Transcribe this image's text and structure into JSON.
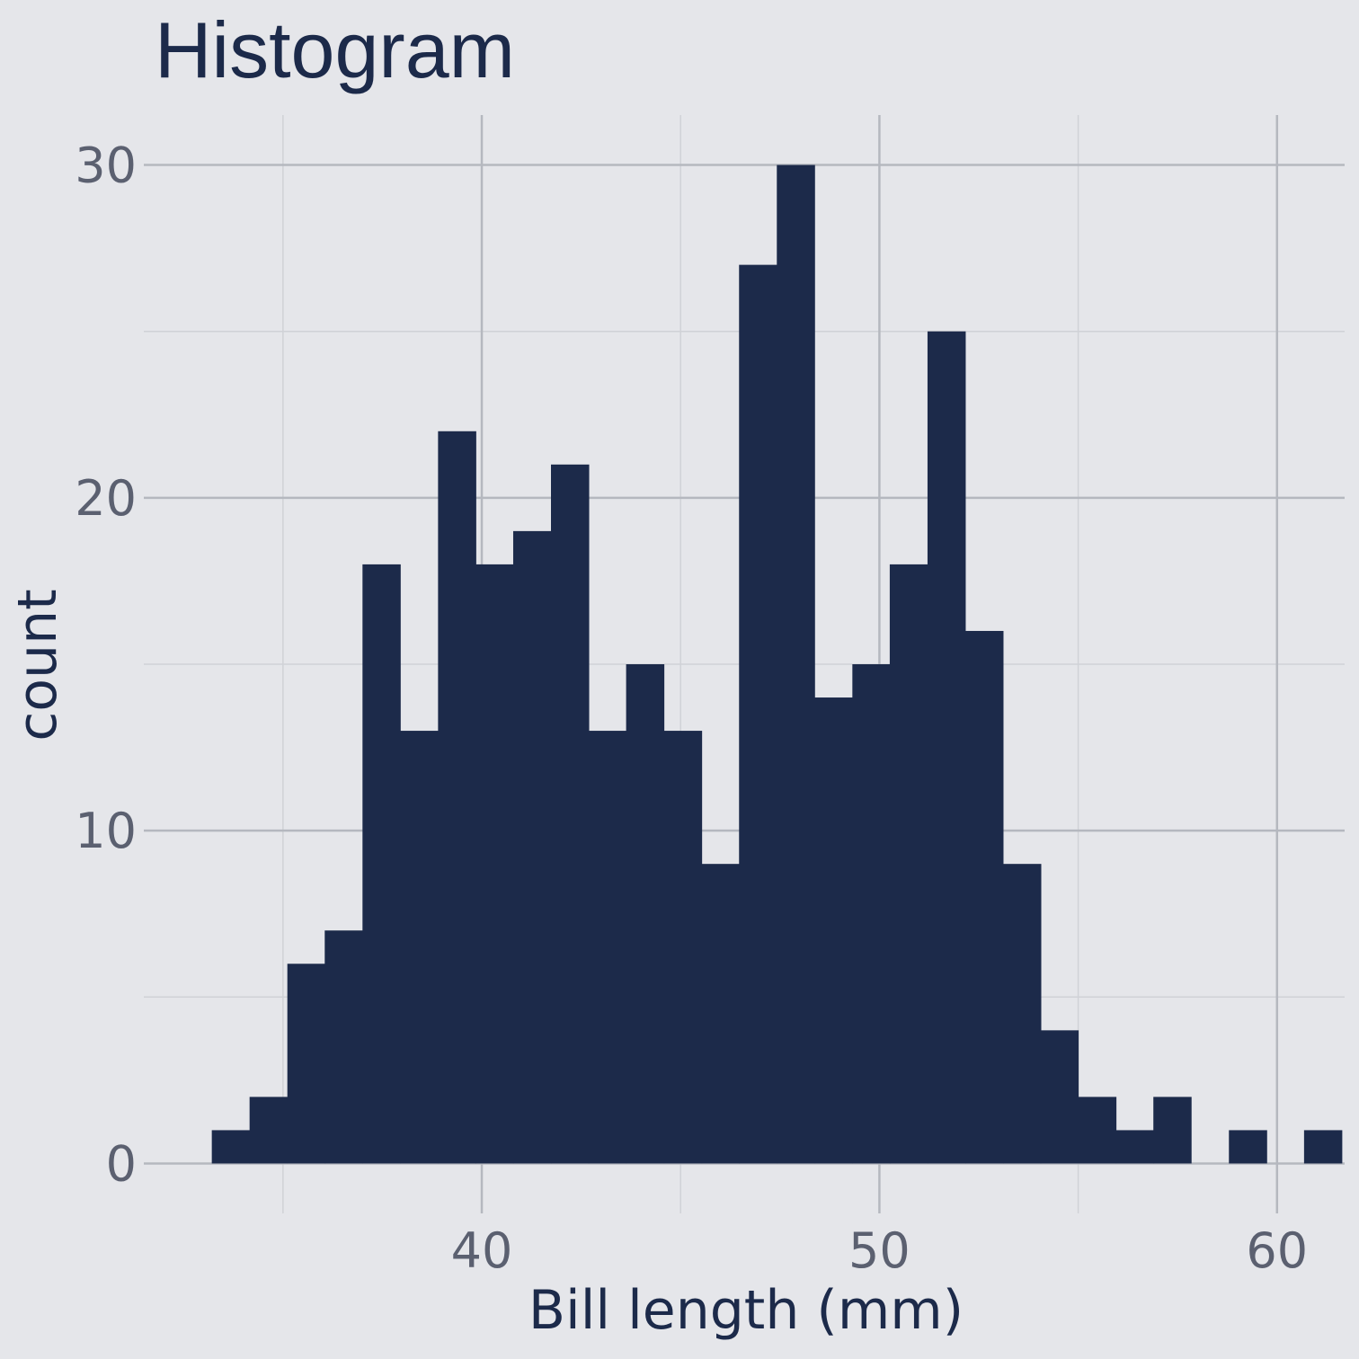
{
  "chart_data": {
    "type": "bar",
    "title": "Histogram",
    "xlabel": "Bill length (mm)",
    "ylabel": "count",
    "xlim": [
      31.5,
      61.7
    ],
    "ylim": [
      -1.5,
      31.5
    ],
    "x_ticks": [
      40,
      50,
      60
    ],
    "x_minor": [
      35,
      45,
      55
    ],
    "y_ticks": [
      0,
      10,
      20,
      30
    ],
    "y_minor": [
      5,
      15,
      25
    ],
    "grid": true,
    "bin_width": 0.9474,
    "bins": [
      {
        "x0": 33.21,
        "count": 1
      },
      {
        "x0": 34.16,
        "count": 2
      },
      {
        "x0": 35.11,
        "count": 6
      },
      {
        "x0": 36.05,
        "count": 7
      },
      {
        "x0": 37.0,
        "count": 18
      },
      {
        "x0": 37.95,
        "count": 13
      },
      {
        "x0": 38.9,
        "count": 22
      },
      {
        "x0": 39.84,
        "count": 18
      },
      {
        "x0": 40.79,
        "count": 19
      },
      {
        "x0": 41.74,
        "count": 21
      },
      {
        "x0": 42.68,
        "count": 13
      },
      {
        "x0": 43.63,
        "count": 15
      },
      {
        "x0": 44.58,
        "count": 13
      },
      {
        "x0": 45.53,
        "count": 9
      },
      {
        "x0": 46.47,
        "count": 27
      },
      {
        "x0": 47.42,
        "count": 30
      },
      {
        "x0": 48.37,
        "count": 14
      },
      {
        "x0": 49.32,
        "count": 15
      },
      {
        "x0": 50.26,
        "count": 18
      },
      {
        "x0": 51.21,
        "count": 25
      },
      {
        "x0": 52.16,
        "count": 16
      },
      {
        "x0": 53.11,
        "count": 9
      },
      {
        "x0": 54.05,
        "count": 4
      },
      {
        "x0": 55.0,
        "count": 2
      },
      {
        "x0": 55.95,
        "count": 1
      },
      {
        "x0": 56.89,
        "count": 2
      },
      {
        "x0": 57.84,
        "count": 0
      },
      {
        "x0": 58.79,
        "count": 1
      },
      {
        "x0": 59.74,
        "count": 0
      },
      {
        "x0": 60.68,
        "count": 1
      }
    ],
    "colors": {
      "background": "#e5e6ea",
      "bar": "#1c2a4a",
      "grid_major": "#b5b8bf",
      "grid_minor": "#d0d2d7",
      "tick_text": "#5b6070",
      "title_text": "#1c2a4a"
    }
  }
}
